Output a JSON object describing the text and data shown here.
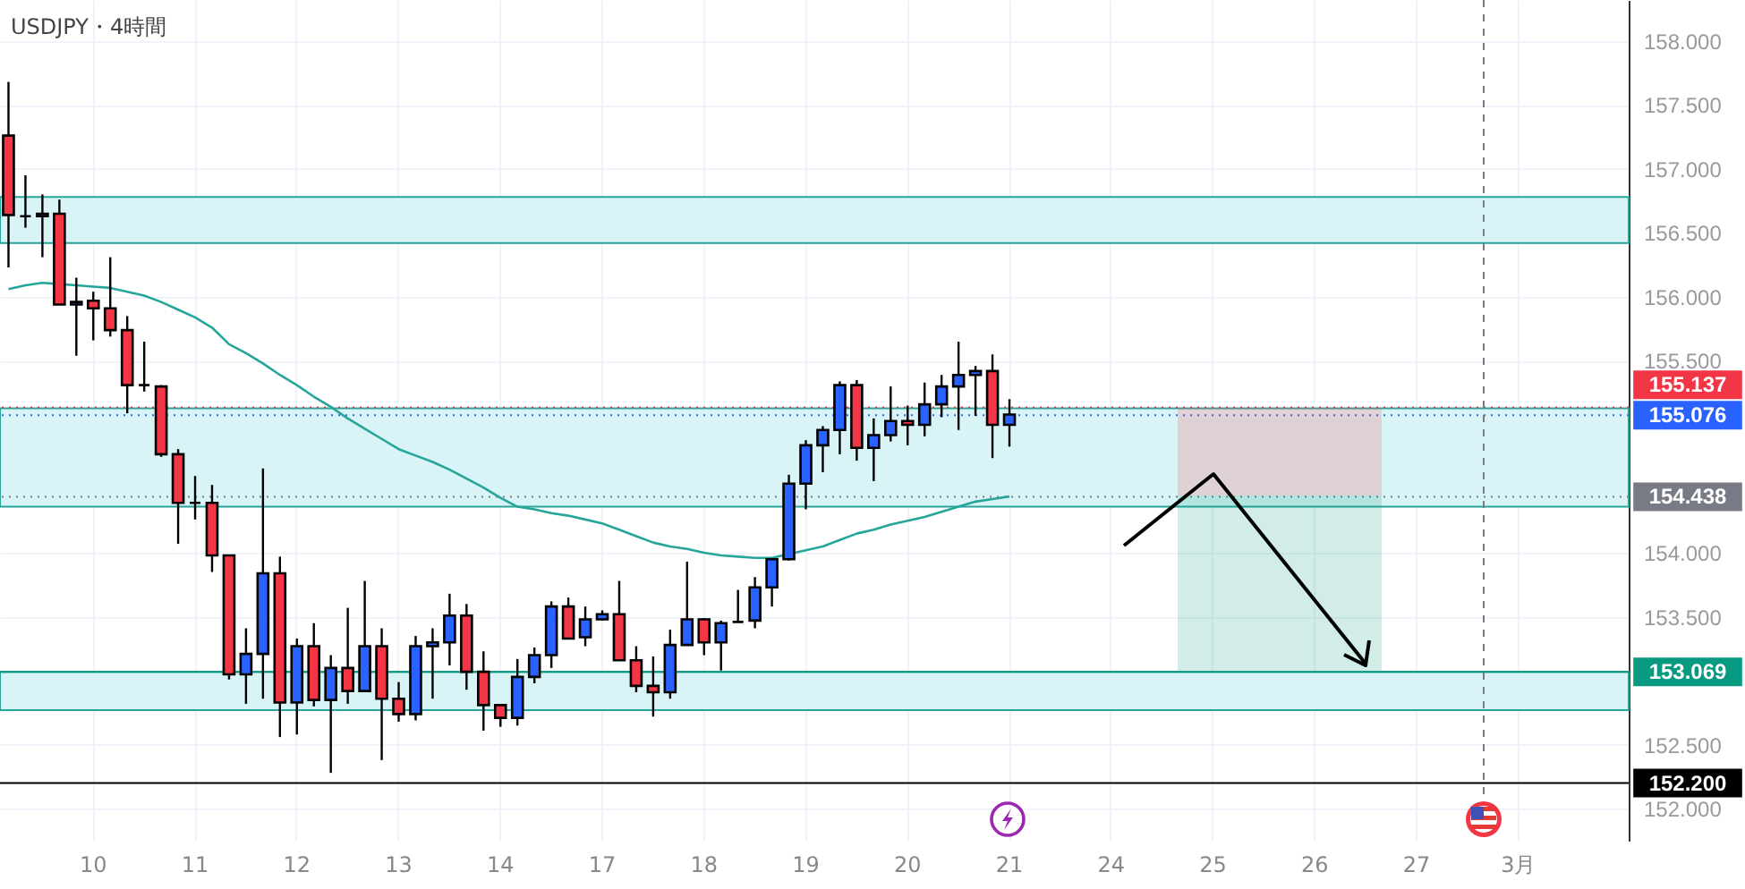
{
  "chart_data": {
    "type": "candlestick",
    "title": "USDJPY・4時間",
    "categories": [
      null,
      null,
      null,
      null,
      null,
      "10",
      null,
      null,
      null,
      null,
      null,
      "11",
      null,
      null,
      null,
      null,
      null,
      "12",
      null,
      null,
      null,
      null,
      null,
      "13",
      null,
      null,
      null,
      null,
      null,
      "14",
      null,
      null,
      null,
      null,
      null,
      "17",
      null,
      null,
      null,
      null,
      null,
      "18",
      null,
      null,
      null,
      null,
      null,
      "19",
      null,
      null,
      null,
      null,
      null,
      "20",
      null,
      null,
      null,
      null,
      null,
      "21",
      null,
      null,
      null,
      null,
      null,
      "24",
      null,
      null,
      null,
      null,
      null,
      "25",
      null,
      null,
      null,
      null,
      null,
      "26",
      null,
      null,
      null,
      null,
      null,
      "27",
      null,
      null,
      null,
      null,
      null,
      "3月",
      null,
      null,
      null,
      null,
      null,
      null
    ],
    "ohlc": [
      [
        157.26,
        157.68,
        156.23,
        156.64
      ],
      [
        156.63,
        156.95,
        156.54,
        156.63
      ],
      [
        156.63,
        156.8,
        156.31,
        156.65
      ],
      [
        156.65,
        156.76,
        155.94,
        155.94
      ],
      [
        155.94,
        156.15,
        155.54,
        155.96
      ],
      [
        155.97,
        156.04,
        155.66,
        155.91
      ],
      [
        155.91,
        156.31,
        155.69,
        155.74
      ],
      [
        155.74,
        155.85,
        155.09,
        155.31
      ],
      [
        155.31,
        155.65,
        155.26,
        155.31
      ],
      [
        155.3,
        155.31,
        154.75,
        154.77
      ],
      [
        154.77,
        154.81,
        154.07,
        154.39
      ],
      [
        154.39,
        154.6,
        154.26,
        154.39
      ],
      [
        154.39,
        154.53,
        153.85,
        153.98
      ],
      [
        153.98,
        153.98,
        153.01,
        153.05
      ],
      [
        153.05,
        153.41,
        152.82,
        153.21
      ],
      [
        153.21,
        154.66,
        152.86,
        153.84
      ],
      [
        153.84,
        153.97,
        152.56,
        152.83
      ],
      [
        152.83,
        153.33,
        152.58,
        153.27
      ],
      [
        153.27,
        153.45,
        152.8,
        152.85
      ],
      [
        152.85,
        153.2,
        152.28,
        153.1
      ],
      [
        153.1,
        153.57,
        152.82,
        152.92
      ],
      [
        152.92,
        153.78,
        152.92,
        153.27
      ],
      [
        153.27,
        153.41,
        152.38,
        152.86
      ],
      [
        152.86,
        152.99,
        152.68,
        152.74
      ],
      [
        152.74,
        153.35,
        152.69,
        153.27
      ],
      [
        153.27,
        153.41,
        152.86,
        153.3
      ],
      [
        153.3,
        153.68,
        153.12,
        153.51
      ],
      [
        153.51,
        153.6,
        152.93,
        153.07
      ],
      [
        153.07,
        153.23,
        152.61,
        152.81
      ],
      [
        152.81,
        152.81,
        152.64,
        152.71
      ],
      [
        152.71,
        153.17,
        152.65,
        153.03
      ],
      [
        153.03,
        153.26,
        152.98,
        153.2
      ],
      [
        153.2,
        153.62,
        153.1,
        153.58
      ],
      [
        153.58,
        153.65,
        153.33,
        153.33
      ],
      [
        153.34,
        153.58,
        153.27,
        153.48
      ],
      [
        153.48,
        153.55,
        153.47,
        153.52
      ],
      [
        153.52,
        153.78,
        153.16,
        153.16
      ],
      [
        153.16,
        153.27,
        152.91,
        152.96
      ],
      [
        152.96,
        153.19,
        152.72,
        152.91
      ],
      [
        152.91,
        153.4,
        152.86,
        153.28
      ],
      [
        153.28,
        153.93,
        153.28,
        153.48
      ],
      [
        153.48,
        153.49,
        153.2,
        153.3
      ],
      [
        153.3,
        153.47,
        153.08,
        153.45
      ],
      [
        153.46,
        153.71,
        153.46,
        153.46
      ],
      [
        153.47,
        153.81,
        153.41,
        153.73
      ],
      [
        153.73,
        153.95,
        153.58,
        153.95
      ],
      [
        153.95,
        154.61,
        153.94,
        154.54
      ],
      [
        154.54,
        154.88,
        154.34,
        154.84
      ],
      [
        154.84,
        154.99,
        154.63,
        154.96
      ],
      [
        154.96,
        155.34,
        154.77,
        155.31
      ],
      [
        155.31,
        155.35,
        154.72,
        154.82
      ],
      [
        154.82,
        155.05,
        154.56,
        154.92
      ],
      [
        154.92,
        155.3,
        154.87,
        155.03
      ],
      [
        155.03,
        155.15,
        154.84,
        155
      ],
      [
        155,
        155.33,
        154.91,
        155.16
      ],
      [
        155.16,
        155.39,
        155.06,
        155.3
      ],
      [
        155.3,
        155.65,
        154.96,
        155.39
      ],
      [
        155.39,
        155.46,
        155.07,
        155.42
      ],
      [
        155.42,
        155.55,
        154.74,
        155
      ],
      [
        155,
        155.2,
        154.83,
        155.08
      ],
      null,
      null,
      null,
      null,
      null,
      null,
      null,
      null,
      null,
      null,
      null,
      null,
      null,
      null,
      null,
      null,
      null,
      null,
      null,
      null,
      null,
      null,
      null,
      null,
      null,
      null,
      null,
      null,
      null,
      null,
      null,
      null,
      null,
      null,
      null,
      null
    ],
    "colors": [
      "#f23645",
      "#000000",
      "#2962ff",
      "#f23645",
      "#2962ff",
      "#f23645",
      "#f23645",
      "#f23645",
      "#000000",
      "#f23645",
      "#f23645",
      "#000000",
      "#f23645",
      "#f23645",
      "#2962ff",
      "#2962ff",
      "#f23645",
      "#2962ff",
      "#f23645",
      "#2962ff",
      "#f23645",
      "#2962ff",
      "#f23645",
      "#f23645",
      "#2962ff",
      "#2962ff",
      "#2962ff",
      "#f23645",
      "#f23645",
      "#f23645",
      "#2962ff",
      "#2962ff",
      "#2962ff",
      "#f23645",
      "#2962ff",
      "#2962ff",
      "#f23645",
      "#f23645",
      "#f23645",
      "#2962ff",
      "#2962ff",
      "#f23645",
      "#2962ff",
      "#000000",
      "#2962ff",
      "#2962ff",
      "#2962ff",
      "#2962ff",
      "#2962ff",
      "#2962ff",
      "#f23645",
      "#2962ff",
      "#2962ff",
      "#f23645",
      "#2962ff",
      "#2962ff",
      "#2962ff",
      "#2962ff",
      "#f23645",
      "#2962ff",
      null,
      null,
      null,
      null,
      null,
      null,
      null,
      null,
      null,
      null,
      null,
      null,
      null,
      null,
      null,
      null,
      null,
      null,
      null,
      null,
      null,
      null,
      null,
      null,
      null,
      null,
      null,
      null,
      null,
      null,
      null,
      null,
      null,
      null,
      null,
      null
    ],
    "series": [
      {
        "type": "line",
        "color": "#26a69a",
        "values": [
          156.06,
          156.09,
          156.11,
          156.1,
          156.09,
          156.08,
          156.07,
          156.04,
          156.01,
          155.96,
          155.9,
          155.84,
          155.76,
          155.63,
          155.56,
          155.48,
          155.39,
          155.31,
          155.22,
          155.14,
          155.05,
          154.97,
          154.89,
          154.81,
          154.76,
          154.71,
          154.65,
          154.58,
          154.51,
          154.43,
          154.36,
          154.34,
          154.31,
          154.29,
          154.26,
          154.23,
          154.18,
          154.13,
          154.08,
          154.05,
          154.03,
          154,
          153.98,
          153.97,
          153.96,
          153.96,
          153.99,
          154.02,
          154.05,
          154.1,
          154.15,
          154.18,
          154.22,
          154.25,
          154.28,
          154.32,
          154.36,
          154.4,
          154.42,
          154.44,
          null,
          null,
          null,
          null,
          null,
          null,
          null,
          null,
          null,
          null,
          null,
          null,
          null,
          null,
          null,
          null,
          null,
          null,
          null,
          null,
          null,
          null,
          null,
          null,
          null,
          null,
          null,
          null,
          null,
          null,
          null,
          null,
          null,
          null,
          null,
          null
        ]
      }
    ],
    "ylim": [
      151.75,
      158.32
    ],
    "yticks": [
      {
        "value": 152,
        "label": "152.000"
      },
      {
        "value": 152.5,
        "label": "152.500"
      },
      {
        "value": 153.5,
        "label": "153.500"
      },
      {
        "value": 154,
        "label": "154.000"
      },
      {
        "value": 155.5,
        "label": "155.500"
      },
      {
        "value": 156,
        "label": "156.000"
      },
      {
        "value": 156.5,
        "label": "156.500"
      },
      {
        "value": 157,
        "label": "157.000"
      },
      {
        "value": 157.5,
        "label": "157.500"
      },
      {
        "value": 158,
        "label": "158.000"
      }
    ],
    "bands": [
      {
        "axis": "y",
        "from": 156.42,
        "to": 156.78,
        "color": "#d9f4f6"
      },
      {
        "axis": "y",
        "from": 154.36,
        "to": 155.13,
        "color": "#d9f4f6"
      },
      {
        "axis": "y",
        "from": 152.77,
        "to": 153.07,
        "color": "#d9f4f6"
      }
    ],
    "ref_lines": [
      {
        "axis": "y",
        "value": 155.137,
        "label": "155.137",
        "color": "#f23645",
        "line_style": "dotted"
      },
      {
        "axis": "y",
        "value": 155.076,
        "label": "155.076",
        "color": "#2962ff",
        "line_style": "dotted"
      },
      {
        "axis": "y",
        "value": 154.438,
        "label": "154.438",
        "color": "#787b86",
        "line_style": "dotted"
      },
      {
        "axis": "y",
        "value": 153.069,
        "label": "153.069",
        "color": "#089981",
        "line_style": "solid"
      },
      {
        "axis": "y",
        "value": 152.2,
        "label": "152.200",
        "color": "#000000",
        "line_style": "solid"
      }
    ],
    "grid": true
  }
}
